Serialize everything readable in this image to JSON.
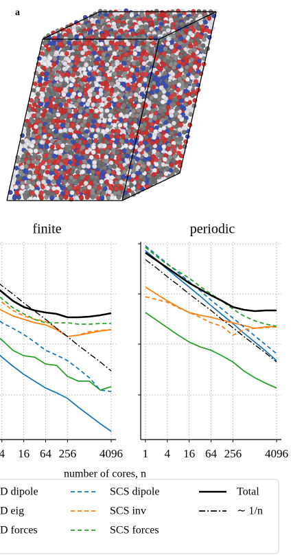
{
  "panel_label": "a",
  "chart_data": [
    {
      "type": "line",
      "title": "finite",
      "log_x": true,
      "grid": true,
      "x": [
        1,
        2,
        4,
        8,
        16,
        32,
        64,
        128,
        256,
        512,
        1024,
        2048,
        4096
      ],
      "xlim": [
        0.74,
        5550
      ],
      "xticks": [
        4,
        16,
        64,
        256,
        4096
      ],
      "ylim": [
        0,
        28.8
      ],
      "yticks": [
        6.5,
        13.9,
        21.2,
        28.5
      ],
      "series": [
        {
          "color": "#1f77b4",
          "style": "solid",
          "values": [
            15.0,
            13.5,
            12.0,
            10.7,
            9.5,
            8.5,
            7.5,
            6.8,
            6.0,
            4.7,
            3.5,
            2.3,
            1.2
          ]
        },
        {
          "color": "#ff7f0e",
          "style": "solid",
          "values": [
            20.8,
            19.8,
            18.8,
            18.0,
            17.5,
            17.0,
            16.7,
            16.0,
            15.0,
            15.2,
            15.5,
            15.8,
            16.0
          ]
        },
        {
          "color": "#2ca02c",
          "style": "solid",
          "values": [
            17.0,
            15.7,
            14.5,
            13.0,
            12.2,
            12.0,
            11.0,
            10.8,
            9.2,
            8.5,
            8.5,
            7.2,
            7.7
          ]
        },
        {
          "color": "#1f77b4",
          "style": "dashed",
          "values": [
            20.0,
            18.5,
            17.0,
            16.2,
            15.3,
            14.2,
            13.0,
            12.3,
            11.5,
            10.3,
            9.0,
            7.2,
            7.0
          ]
        },
        {
          "color": "#ff7f0e",
          "style": "dashed",
          "values": [
            22.5,
            21.2,
            20.0,
            18.8,
            18.0,
            17.5,
            17.2,
            16.2,
            15.0,
            15.2,
            15.7,
            15.9,
            16.0
          ]
        },
        {
          "color": "#2ca02c",
          "style": "dashed",
          "values": [
            23.5,
            22.0,
            20.5,
            19.2,
            18.3,
            17.5,
            17.0,
            17.0,
            17.0,
            16.8,
            16.8,
            16.9,
            16.9
          ]
        },
        {
          "color": "#000000",
          "style": "thick",
          "values": [
            24.0,
            22.8,
            21.5,
            20.2,
            19.3,
            18.8,
            18.5,
            18.3,
            17.8,
            17.8,
            17.9,
            18.1,
            18.4
          ]
        },
        {
          "color": "#000000",
          "style": "dashdot",
          "values": [
            24.9,
            23.7,
            22.4,
            21.2,
            19.9,
            18.7,
            17.5,
            16.2,
            15.0,
            13.7,
            12.5,
            11.3,
            10.0
          ]
        }
      ]
    },
    {
      "type": "line",
      "title": "periodic",
      "xlabel": "number of cores, n",
      "log_x": true,
      "grid": true,
      "x": [
        1,
        2,
        4,
        8,
        16,
        32,
        64,
        128,
        256,
        512,
        1024,
        2048,
        4096
      ],
      "xlim": [
        0.74,
        5550
      ],
      "xticks": [
        1,
        4,
        16,
        64,
        256,
        4096
      ],
      "ylim": [
        0,
        28.8
      ],
      "yticks": [
        6.5,
        13.9,
        21.2,
        28.5
      ],
      "series": [
        {
          "name": "D dipole",
          "color": "#1f77b4",
          "style": "solid",
          "values": [
            27.5,
            26.2,
            24.8,
            23.5,
            22.2,
            20.9,
            19.5,
            18.2,
            16.9,
            15.5,
            14.2,
            12.9,
            11.5
          ]
        },
        {
          "name": "D eig",
          "color": "#ff7f0e",
          "style": "solid",
          "values": [
            22.2,
            21.2,
            20.2,
            19.3,
            18.5,
            18.1,
            17.8,
            17.4,
            17.0,
            16.6,
            16.2,
            16.4,
            16.5
          ]
        },
        {
          "name": "D forces",
          "color": "#2ca02c",
          "style": "solid",
          "values": [
            18.5,
            17.4,
            16.3,
            15.2,
            14.2,
            13.5,
            13.0,
            12.2,
            11.3,
            10.0,
            9.0,
            8.2,
            7.5
          ]
        },
        {
          "name": "SCS dipole",
          "color": "#1f77b4",
          "style": "dashed",
          "values": [
            28.2,
            26.9,
            25.6,
            24.3,
            23.0,
            21.7,
            20.3,
            19.0,
            17.7,
            16.4,
            15.1,
            13.8,
            12.5
          ]
        },
        {
          "name": "SCS inv",
          "color": "#ff7f0e",
          "style": "dashed",
          "values": [
            20.8,
            20.4,
            20.0,
            19.2,
            18.5,
            17.8,
            17.0,
            16.5,
            15.2,
            16.0,
            16.2,
            16.3,
            16.4
          ]
        },
        {
          "name": "SCS forces",
          "color": "#2ca02c",
          "style": "dashed",
          "values": [
            28.0,
            26.7,
            25.5,
            24.5,
            23.5,
            22.3,
            21.2,
            20.2,
            19.0,
            18.0,
            17.3,
            16.8,
            16.5
          ]
        },
        {
          "name": "Total",
          "color": "#000000",
          "style": "thick",
          "values": [
            27.2,
            26.1,
            25.0,
            23.9,
            22.8,
            21.9,
            21.0,
            20.2,
            19.3,
            18.9,
            18.7,
            18.8,
            18.8
          ]
        },
        {
          "name": "∼ 1/n",
          "color": "#000000",
          "style": "dashdot",
          "values": [
            26.2,
            25.0,
            23.7,
            22.5,
            21.2,
            20.0,
            18.8,
            17.5,
            16.3,
            15.0,
            13.8,
            12.6,
            11.3
          ]
        }
      ]
    }
  ]
}
